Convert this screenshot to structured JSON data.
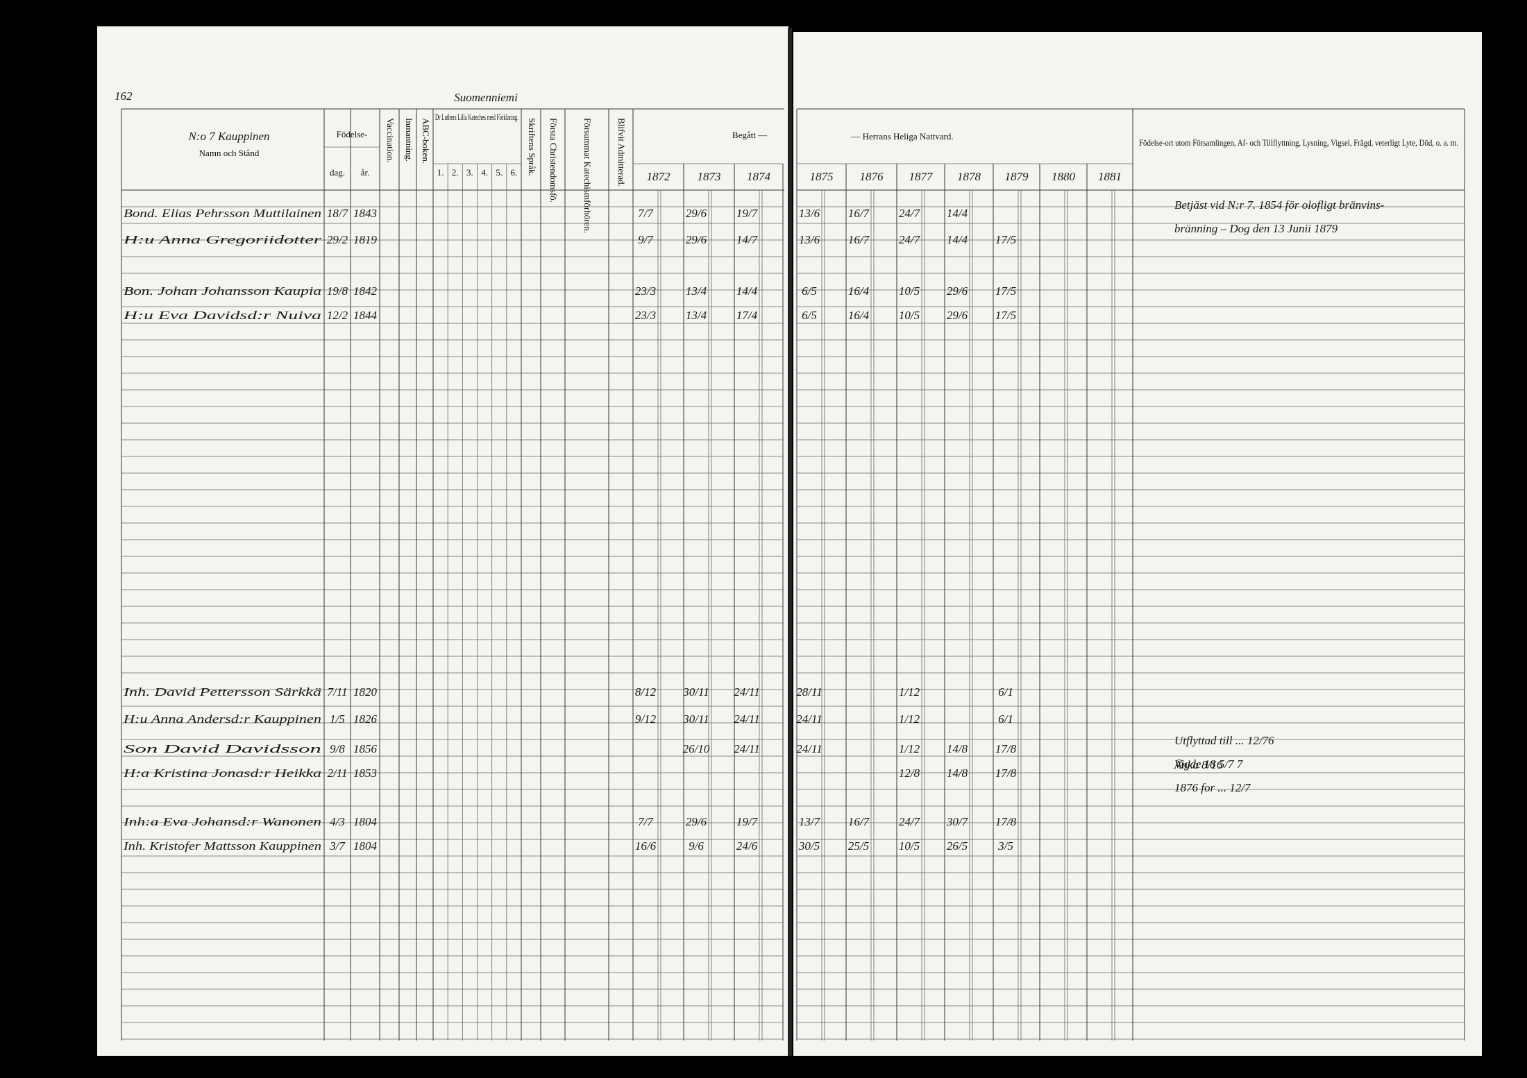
{
  "header": {
    "page_number": "162",
    "parish": "Suomenniemi",
    "household": "N:o 7 Kauppinen"
  },
  "columns": {
    "name": "Namn och Stånd",
    "birth": "Födelse-",
    "day": "dag.",
    "year": "år.",
    "vaccination": "Vaccination.",
    "inmantning": "Inmantning.",
    "abc": "ABC-boken.",
    "catechism": "Dr Luthers Lilla Kateches med Förklaring.",
    "catechism_parts": [
      "1.",
      "2.",
      "3.",
      "4.",
      "5.",
      "6."
    ],
    "scripture": "Skriftens Språk.",
    "first_christianity": "Första Christendomsfö.",
    "missed": "Försummat Katechismförhören.",
    "admitted": "Blifvit Admitterad.",
    "communion_left": "Begått —",
    "communion_right": "— Herrans Heliga Nattvard.",
    "remarks": "Födelse-ort utom Församlingen, Af- och Tillflyttning, Lysning, Vigsel, Frägd, veterligt Lyte, Död, o. a. m.",
    "years": [
      "1872",
      "1873",
      "1874",
      "1875",
      "1876",
      "1877",
      "1878",
      "1879",
      "1880",
      "1881"
    ]
  },
  "rows": [
    {
      "name": "Bond. Elias Pehrsson Muttilainen",
      "day": "18/7",
      "year": "1843",
      "communion": [
        "7/7",
        "29/6",
        "19/7",
        "13/6",
        "16/7",
        "24/7",
        "14/4",
        null,
        null,
        null
      ],
      "remarks": [
        "Betjäst vid N:r 7. 1854 för olofligt bränvins-",
        "bränning – Dog den 13 Junii 1879"
      ]
    },
    {
      "name": "H:u Anna Gregoriidotter",
      "day": "29/2",
      "year": "1819",
      "communion": [
        "9/7",
        "29/6",
        "14/7",
        "13/6",
        "16/7",
        "24/7",
        "14/4",
        "17/5",
        null,
        null
      ]
    },
    {
      "name": "Bon. Johan Johansson Kaupia",
      "day": "19/8",
      "year": "1842",
      "communion": [
        "23/3",
        "13/4",
        "14/4",
        "6/5",
        "16/4",
        "10/5",
        "29/6",
        "17/5",
        null,
        null
      ]
    },
    {
      "name": "H:u Eva Davidsd:r Nuiva",
      "day": "12/2",
      "year": "1844",
      "communion": [
        "23/3",
        "13/4",
        "17/4",
        "6/5",
        "16/4",
        "10/5",
        "29/6",
        "17/5",
        null,
        null
      ]
    },
    {
      "name": "Inh. David Pettersson Särkkä",
      "day": "7/11",
      "year": "1820",
      "communion": [
        "8/12",
        "30/11",
        "24/11",
        "28/11",
        null,
        "1/12",
        null,
        "6/1",
        null,
        null
      ]
    },
    {
      "name": "H:u Anna Andersd:r Kauppinen",
      "day": "1/5",
      "year": "1826",
      "communion": [
        "9/12",
        "30/11",
        "24/11",
        "24/11",
        null,
        "1/12",
        null,
        "6/1",
        null,
        null
      ]
    },
    {
      "name": "Son David Davidsson",
      "day": "9/8",
      "year": "1856",
      "communion": [
        null,
        "26/10",
        "24/11",
        "24/11",
        null,
        "1/12",
        "14/8",
        "17/8",
        null,
        null
      ],
      "remarks": [
        "Utflyttad till ... 12/76",
        "Vigde 18 5/7 7",
        "1876 for ... 12/7"
      ]
    },
    {
      "name": "H:a Kristina Jonasd:r Heikka",
      "day": "2/11",
      "year": "1853",
      "communion": [
        null,
        null,
        null,
        null,
        null,
        "12/8",
        "14/8",
        "17/8",
        null,
        null
      ],
      "remarks": [
        "Änka 8/16"
      ]
    },
    {
      "name": "Inh:a Eva Johansd:r Wanonen",
      "day": "4/3",
      "year": "1804",
      "communion": [
        "7/7",
        "29/6",
        "19/7",
        "13/7",
        "16/7",
        "24/7",
        "30/7",
        "17/8",
        null,
        null
      ]
    },
    {
      "name": "Inh. Kristofer Mattsson Kauppinen",
      "day": "3/7",
      "year": "1804",
      "communion": [
        "16/6",
        "9/6",
        "24/6",
        "30/5",
        "25/5",
        "10/5",
        "26/5",
        "3/5",
        null,
        null
      ]
    }
  ]
}
